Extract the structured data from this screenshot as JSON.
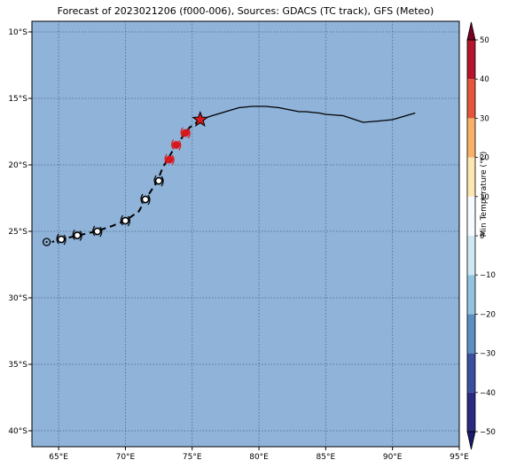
{
  "title": "Forecast of 2023021206 (f000-006), Sources: GDACS (TC track), GFS (Meteo)",
  "map": {
    "lon_range": [
      63,
      95
    ],
    "lat_range": [
      -41.2,
      -9.2
    ],
    "ocean_color": "#8fb3d9",
    "grid": true,
    "lon_ticks": [
      65,
      70,
      75,
      80,
      85,
      90,
      95
    ],
    "lon_tick_labels": [
      "65°E",
      "70°E",
      "75°E",
      "80°E",
      "85°E",
      "90°E",
      "95°E"
    ],
    "lat_ticks": [
      -10,
      -15,
      -20,
      -25,
      -30,
      -35,
      -40
    ],
    "lat_tick_labels": [
      "10°S",
      "15°S",
      "20°S",
      "25°S",
      "30°S",
      "35°S",
      "40°S"
    ]
  },
  "track": {
    "past": [
      [
        75.6,
        -16.6
      ],
      [
        76.5,
        -16.3
      ],
      [
        77.5,
        -16.0
      ],
      [
        78.5,
        -15.7
      ],
      [
        79.5,
        -15.6
      ],
      [
        80.5,
        -15.6
      ],
      [
        81.5,
        -15.7
      ],
      [
        82.5,
        -15.9
      ],
      [
        83.0,
        -16.0
      ],
      [
        83.5,
        -16.0
      ],
      [
        84.5,
        -16.1
      ],
      [
        85.0,
        -16.2
      ],
      [
        86.3,
        -16.3
      ],
      [
        87.8,
        -16.8
      ],
      [
        89.0,
        -16.7
      ],
      [
        90.0,
        -16.6
      ],
      [
        91.7,
        -16.1
      ]
    ],
    "forecast": [
      [
        75.6,
        -16.6
      ],
      [
        74.8,
        -17.2
      ],
      [
        74.2,
        -18.0
      ],
      [
        73.5,
        -19.0
      ],
      [
        72.8,
        -20.2
      ],
      [
        72.4,
        -21.2
      ],
      [
        71.7,
        -22.3
      ],
      [
        71.0,
        -23.5
      ],
      [
        70.0,
        -24.2
      ],
      [
        69.0,
        -24.6
      ],
      [
        67.8,
        -25.0
      ],
      [
        66.5,
        -25.3
      ],
      [
        65.2,
        -25.6
      ],
      [
        64.5,
        -25.8
      ]
    ],
    "current": [
      75.6,
      -16.6
    ],
    "current_color": "#d7191c",
    "track_color": "#000000",
    "points": [
      {
        "lon": 74.5,
        "lat": -17.6,
        "color": "#d7191c",
        "symbol": "tc"
      },
      {
        "lon": 73.8,
        "lat": -18.5,
        "color": "#d7191c",
        "symbol": "tc"
      },
      {
        "lon": 73.3,
        "lat": -19.6,
        "color": "#d7191c",
        "symbol": "tc"
      },
      {
        "lon": 72.5,
        "lat": -21.2,
        "color": "#000000",
        "symbol": "tc"
      },
      {
        "lon": 71.5,
        "lat": -22.6,
        "color": "#000000",
        "symbol": "tc"
      },
      {
        "lon": 70.0,
        "lat": -24.2,
        "color": "#000000",
        "symbol": "tc"
      },
      {
        "lon": 67.9,
        "lat": -25.0,
        "color": "#000000",
        "symbol": "tc"
      },
      {
        "lon": 66.4,
        "lat": -25.3,
        "color": "#000000",
        "symbol": "tc"
      },
      {
        "lon": 65.2,
        "lat": -25.6,
        "color": "#000000",
        "symbol": "tc"
      },
      {
        "lon": 64.1,
        "lat": -25.8,
        "color": "#000000",
        "symbol": "ring"
      }
    ]
  },
  "colorbar": {
    "label": "Min Temperature (°C)",
    "min": -55,
    "max": 55,
    "tick_values": [
      50,
      40,
      30,
      20,
      10,
      0,
      -10,
      -20,
      -30,
      -40,
      -50
    ],
    "tick_labels": [
      "50",
      "40",
      "30",
      "20",
      "10",
      "0",
      "−10",
      "−20",
      "−30",
      "−40",
      "−50"
    ],
    "levels": [
      {
        "from": -50,
        "to": -40,
        "color": "#2b2a83"
      },
      {
        "from": -40,
        "to": -30,
        "color": "#3a4fa0"
      },
      {
        "from": -30,
        "to": -20,
        "color": "#5b8fc2"
      },
      {
        "from": -20,
        "to": -10,
        "color": "#93c4de"
      },
      {
        "from": -10,
        "to": 0,
        "color": "#cfe8f3"
      },
      {
        "from": 0,
        "to": 10,
        "color": "#f7fbff"
      },
      {
        "from": 10,
        "to": 20,
        "color": "#fee6b0"
      },
      {
        "from": 20,
        "to": 30,
        "color": "#fbb06a"
      },
      {
        "from": 30,
        "to": 40,
        "color": "#e4553a"
      },
      {
        "from": 40,
        "to": 50,
        "color": "#b5152b"
      }
    ],
    "under_color": "#1b1b6e",
    "over_color": "#7a0025"
  }
}
